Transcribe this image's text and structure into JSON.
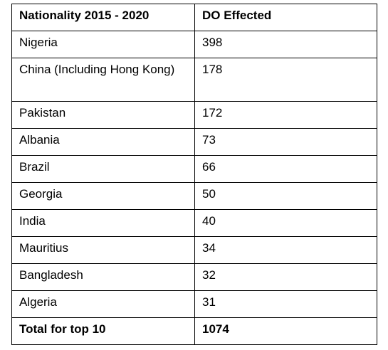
{
  "table": {
    "headers": [
      "Nationality 2015 - 2020",
      "DO Effected"
    ],
    "rows": [
      [
        "Nigeria",
        "398"
      ],
      [
        "China (Including Hong Kong)",
        "178"
      ],
      [
        "Pakistan",
        "172"
      ],
      [
        "Albania",
        "73"
      ],
      [
        "Brazil",
        "66"
      ],
      [
        "Georgia",
        "50"
      ],
      [
        "India",
        "40"
      ],
      [
        "Mauritius",
        "34"
      ],
      [
        "Bangladesh",
        "32"
      ],
      [
        "Algeria",
        "31"
      ]
    ],
    "total": [
      "Total for top 10",
      "1074"
    ]
  }
}
